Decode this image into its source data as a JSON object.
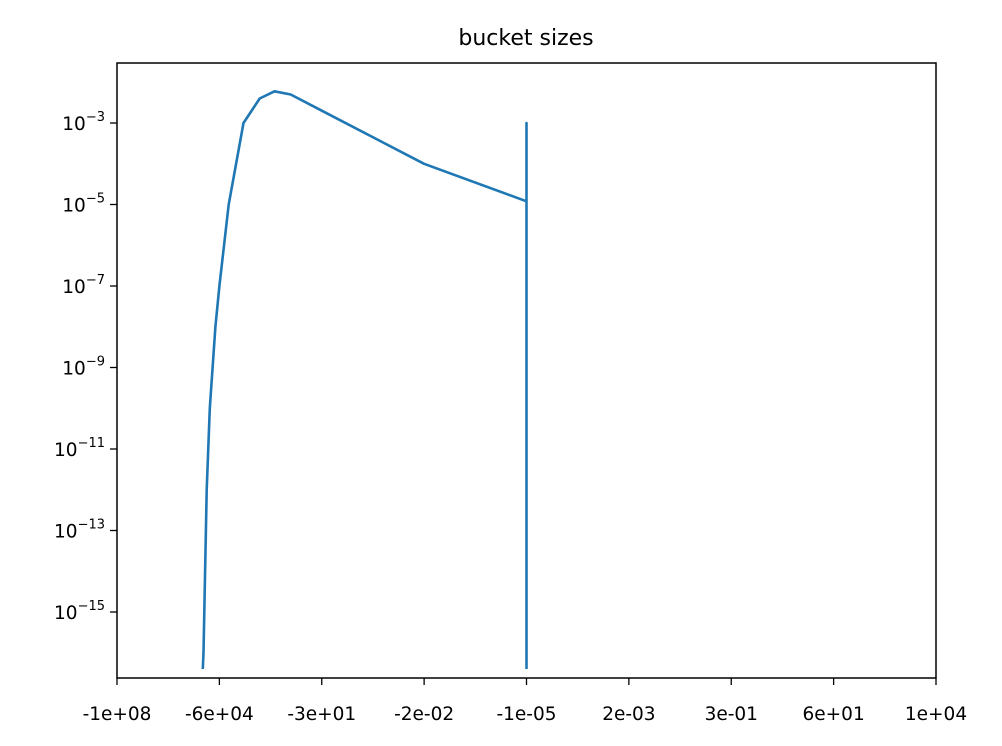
{
  "chart_data": {
    "type": "line",
    "title": "bucket sizes",
    "xlabel": "",
    "ylabel": "",
    "grid": false,
    "legend": "none",
    "y_scale": "log",
    "ylim": [
      4e-17,
      0.03
    ],
    "x_ticks": [
      "-1e+08",
      "-6e+04",
      "-3e+01",
      "-2e-02",
      "-1e-05",
      "2e-03",
      "3e-01",
      "6e+01",
      "1e+04"
    ],
    "y_ticks": [
      {
        "base": "10",
        "exp": "−3",
        "value": 0.001
      },
      {
        "base": "10",
        "exp": "−5",
        "value": 1e-05
      },
      {
        "base": "10",
        "exp": "−7",
        "value": 1e-07
      },
      {
        "base": "10",
        "exp": "−9",
        "value": 1e-09
      },
      {
        "base": "10",
        "exp": "−11",
        "value": 1e-11
      },
      {
        "base": "10",
        "exp": "−13",
        "value": 1e-13
      },
      {
        "base": "10",
        "exp": "−15",
        "value": 1e-15
      }
    ],
    "series": [
      {
        "color": "#1f77b4",
        "points": [
          {
            "x": "-2e+05",
            "y": 4e-17
          },
          {
            "x": "-1.9e+05",
            "y": 1e-16
          },
          {
            "x": "-1.5e+05",
            "y": 1e-12
          },
          {
            "x": "-1.2e+05",
            "y": 1e-10
          },
          {
            "x": "-8e+04",
            "y": 1e-08
          },
          {
            "x": "-6e+04",
            "y": 1e-07
          },
          {
            "x": "-3e+04",
            "y": 1e-05
          },
          {
            "x": "-1e+04",
            "y": 0.001
          },
          {
            "x": "-3e+03",
            "y": 0.004
          },
          {
            "x": "-1e+03",
            "y": 0.006
          },
          {
            "x": "-3e+02",
            "y": 0.005
          },
          {
            "x": "-3e+01",
            "y": 0.002
          },
          {
            "x": "-2e-02",
            "y": 0.0001
          },
          {
            "x": "-1e-05",
            "y": 1.2e-05
          },
          {
            "x": "-1e-05",
            "y": 0.001
          },
          {
            "x": "-1e-05",
            "y": 4e-17
          }
        ]
      }
    ]
  }
}
